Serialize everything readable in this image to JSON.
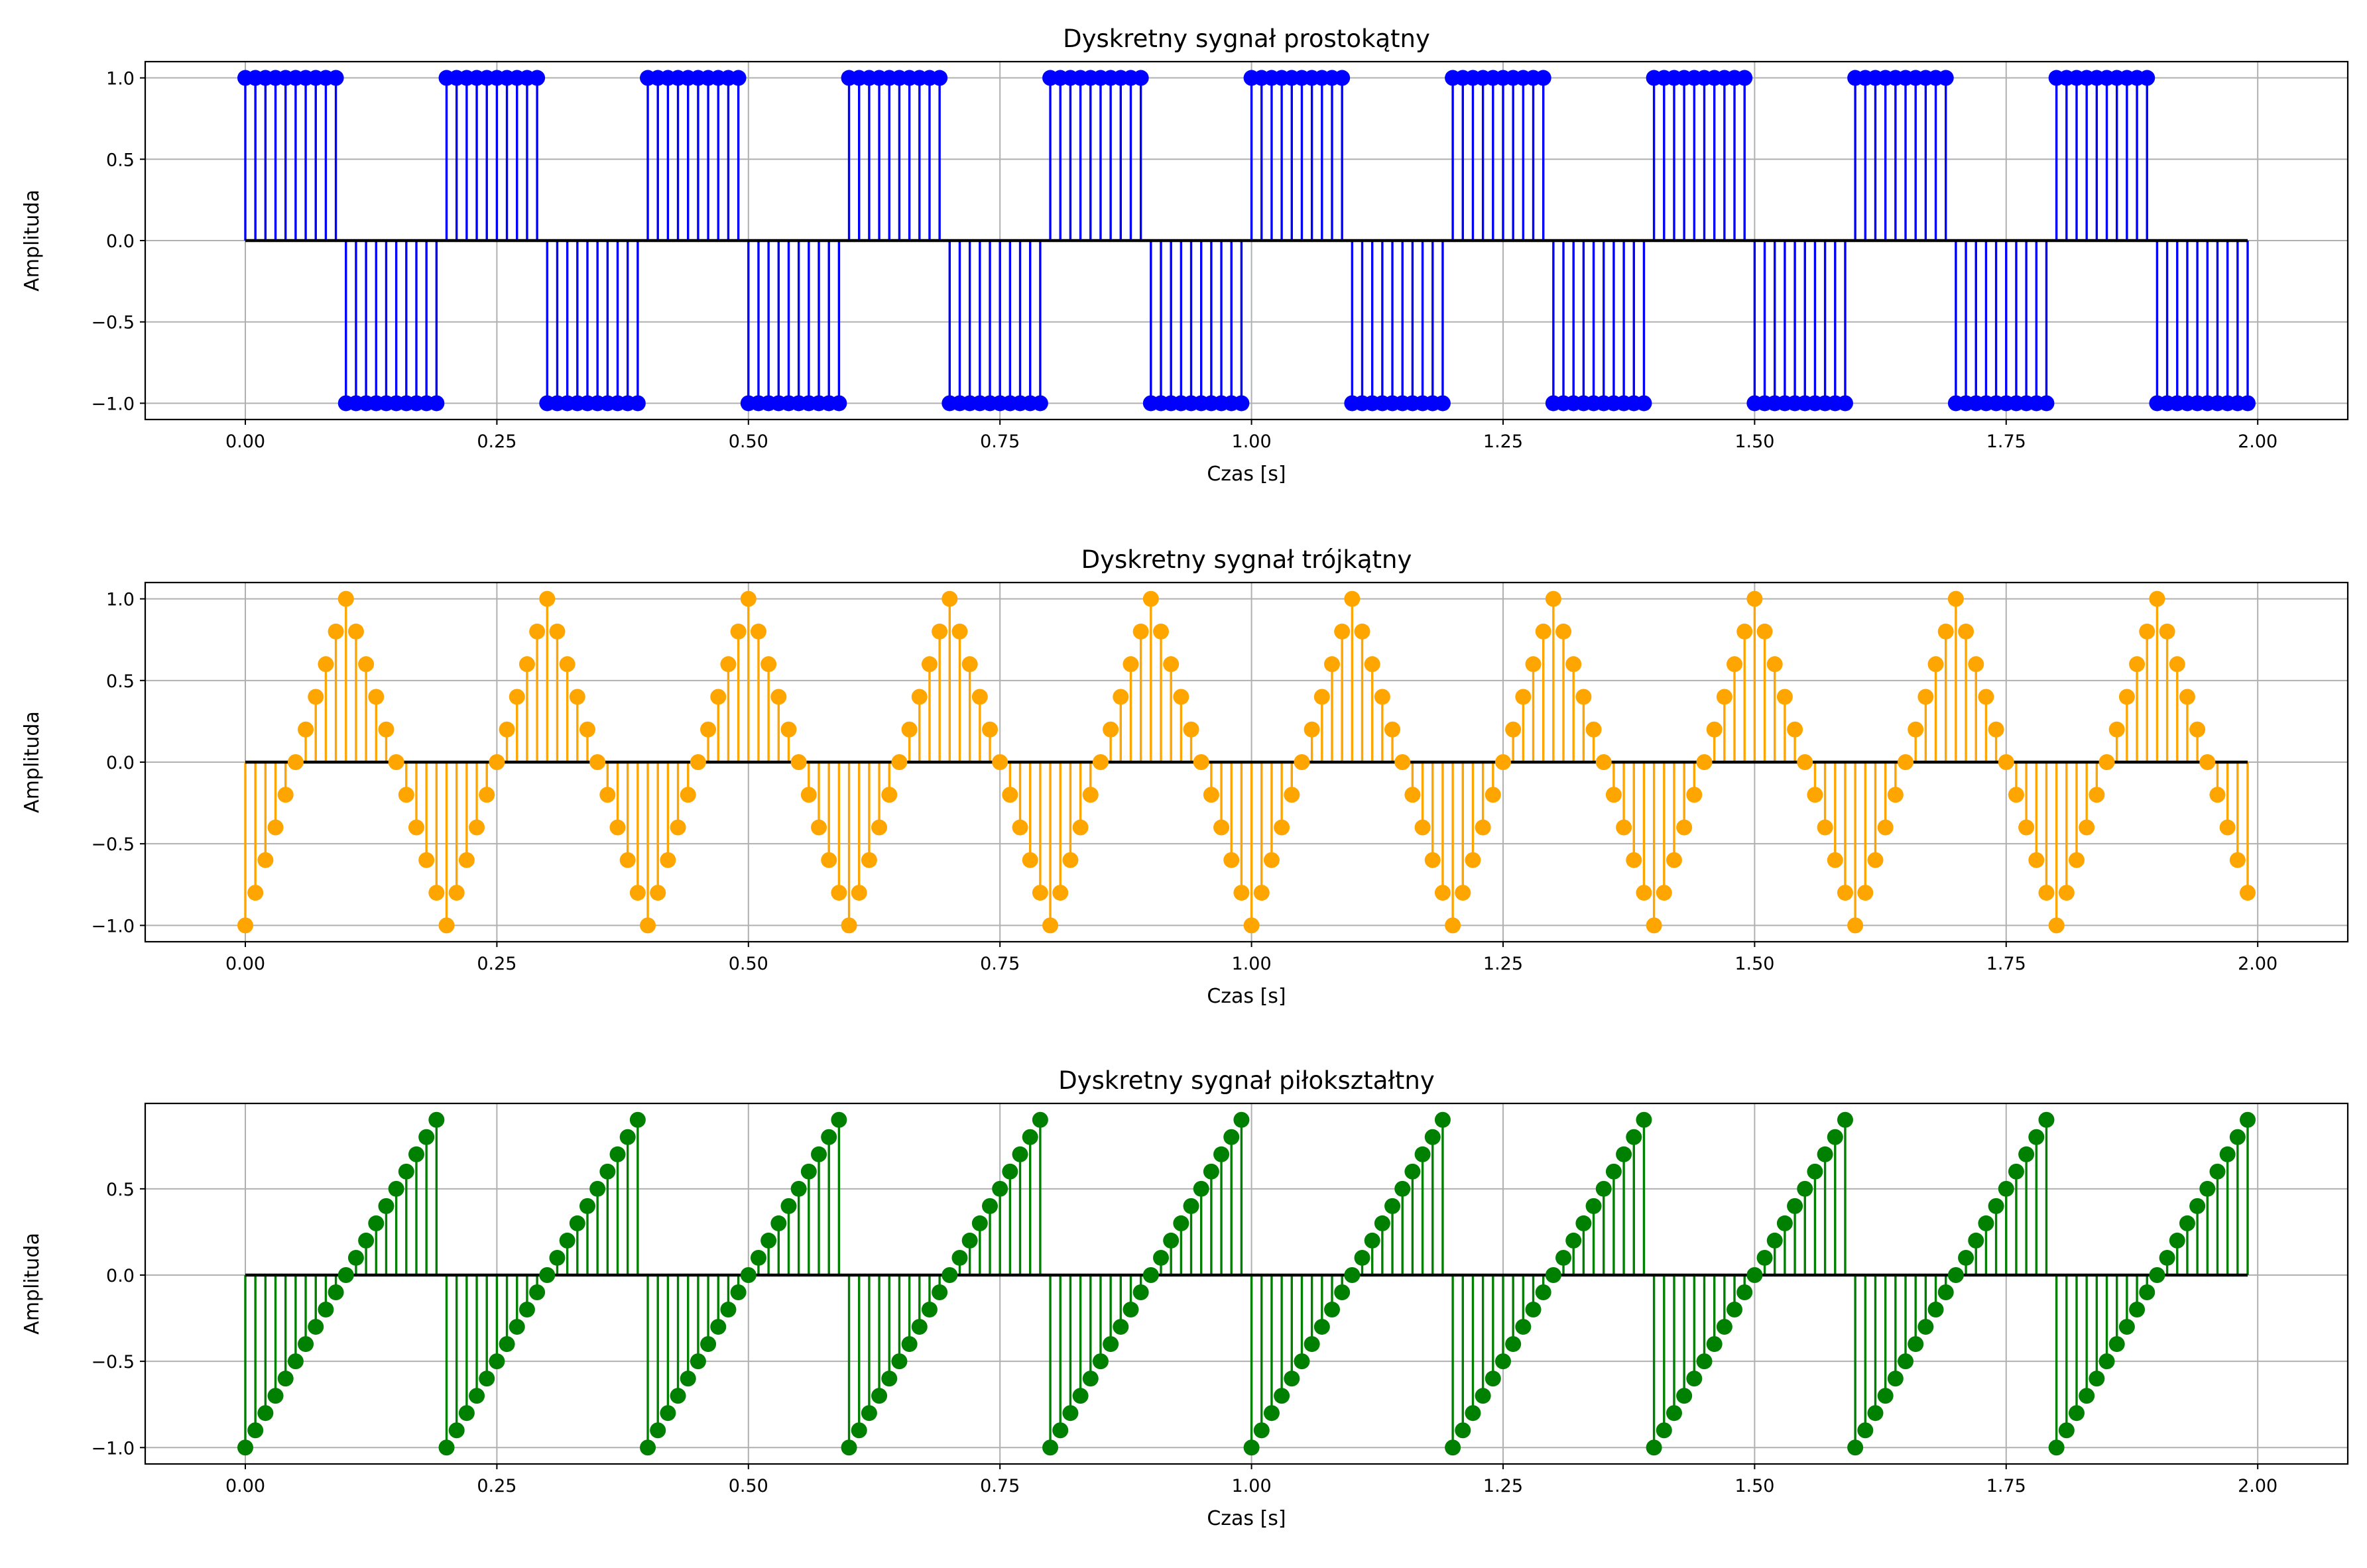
{
  "chart_data": [
    {
      "type": "stem",
      "title": "Dyskretny sygnał prostokątny",
      "xlabel": "Czas [s]",
      "ylabel": "Amplituda",
      "color": "#0000ff",
      "grid": true,
      "xlim": [
        -0.0995,
        2.0895
      ],
      "ylim": [
        -1.1,
        1.1
      ],
      "xticks": [
        0.0,
        0.25,
        0.5,
        0.75,
        1.0,
        1.25,
        1.5,
        1.75,
        2.0
      ],
      "xtick_labels": [
        "0.00",
        "0.25",
        "0.50",
        "0.75",
        "1.00",
        "1.25",
        "1.50",
        "1.75",
        "2.00"
      ],
      "yticks": [
        -1.0,
        -0.5,
        0.0,
        0.5,
        1.0
      ],
      "ytick_labels": [
        "−1.0",
        "−0.5",
        "0.0",
        "0.5",
        "1.0"
      ],
      "x": {
        "start": 0.0,
        "step": 0.01,
        "count": 200
      },
      "values": [
        1,
        1,
        1,
        1,
        1,
        1,
        1,
        1,
        1,
        1,
        -1,
        -1,
        -1,
        -1,
        -1,
        -1,
        -1,
        -1,
        -1,
        -1,
        1,
        1,
        1,
        1,
        1,
        1,
        1,
        1,
        1,
        1,
        -1,
        -1,
        -1,
        -1,
        -1,
        -1,
        -1,
        -1,
        -1,
        -1,
        1,
        1,
        1,
        1,
        1,
        1,
        1,
        1,
        1,
        1,
        -1,
        -1,
        -1,
        -1,
        -1,
        -1,
        -1,
        -1,
        -1,
        -1,
        1,
        1,
        1,
        1,
        1,
        1,
        1,
        1,
        1,
        1,
        -1,
        -1,
        -1,
        -1,
        -1,
        -1,
        -1,
        -1,
        -1,
        -1,
        1,
        1,
        1,
        1,
        1,
        1,
        1,
        1,
        1,
        1,
        -1,
        -1,
        -1,
        -1,
        -1,
        -1,
        -1,
        -1,
        -1,
        -1,
        1,
        1,
        1,
        1,
        1,
        1,
        1,
        1,
        1,
        1,
        -1,
        -1,
        -1,
        -1,
        -1,
        -1,
        -1,
        -1,
        -1,
        -1,
        1,
        1,
        1,
        1,
        1,
        1,
        1,
        1,
        1,
        1,
        -1,
        -1,
        -1,
        -1,
        -1,
        -1,
        -1,
        -1,
        -1,
        -1,
        1,
        1,
        1,
        1,
        1,
        1,
        1,
        1,
        1,
        1,
        -1,
        -1,
        -1,
        -1,
        -1,
        -1,
        -1,
        -1,
        -1,
        -1,
        1,
        1,
        1,
        1,
        1,
        1,
        1,
        1,
        1,
        1,
        -1,
        -1,
        -1,
        -1,
        -1,
        -1,
        -1,
        -1,
        -1,
        -1,
        1,
        1,
        1,
        1,
        1,
        1,
        1,
        1,
        1,
        1,
        -1,
        -1,
        -1,
        -1,
        -1,
        -1,
        -1,
        -1,
        -1,
        -1
      ]
    },
    {
      "type": "stem",
      "title": "Dyskretny sygnał trójkątny",
      "xlabel": "Czas [s]",
      "ylabel": "Amplituda",
      "color": "#ffa500",
      "grid": true,
      "xlim": [
        -0.0995,
        2.0895
      ],
      "ylim": [
        -1.1,
        1.1
      ],
      "xticks": [
        0.0,
        0.25,
        0.5,
        0.75,
        1.0,
        1.25,
        1.5,
        1.75,
        2.0
      ],
      "xtick_labels": [
        "0.00",
        "0.25",
        "0.50",
        "0.75",
        "1.00",
        "1.25",
        "1.50",
        "1.75",
        "2.00"
      ],
      "yticks": [
        -1.0,
        -0.5,
        0.0,
        0.5,
        1.0
      ],
      "ytick_labels": [
        "−1.0",
        "−0.5",
        "0.0",
        "0.5",
        "1.0"
      ],
      "x": {
        "start": 0.0,
        "step": 0.01,
        "count": 200
      },
      "values": [
        -1,
        -0.8,
        -0.6,
        -0.4,
        -0.2,
        0,
        0.2,
        0.4,
        0.6,
        0.8,
        1,
        0.8,
        0.6,
        0.4,
        0.2,
        0,
        -0.2,
        -0.4,
        -0.6,
        -0.8,
        -1,
        -0.8,
        -0.6,
        -0.4,
        -0.2,
        0,
        0.2,
        0.4,
        0.6,
        0.8,
        1,
        0.8,
        0.6,
        0.4,
        0.2,
        0,
        -0.2,
        -0.4,
        -0.6,
        -0.8,
        -1,
        -0.8,
        -0.6,
        -0.4,
        -0.2,
        0,
        0.2,
        0.4,
        0.6,
        0.8,
        1,
        0.8,
        0.6,
        0.4,
        0.2,
        0,
        -0.2,
        -0.4,
        -0.6,
        -0.8,
        -1,
        -0.8,
        -0.6,
        -0.4,
        -0.2,
        0,
        0.2,
        0.4,
        0.6,
        0.8,
        1,
        0.8,
        0.6,
        0.4,
        0.2,
        0,
        -0.2,
        -0.4,
        -0.6,
        -0.8,
        -1,
        -0.8,
        -0.6,
        -0.4,
        -0.2,
        0,
        0.2,
        0.4,
        0.6,
        0.8,
        1,
        0.8,
        0.6,
        0.4,
        0.2,
        0,
        -0.2,
        -0.4,
        -0.6,
        -0.8,
        -1,
        -0.8,
        -0.6,
        -0.4,
        -0.2,
        0,
        0.2,
        0.4,
        0.6,
        0.8,
        1,
        0.8,
        0.6,
        0.4,
        0.2,
        0,
        -0.2,
        -0.4,
        -0.6,
        -0.8,
        -1,
        -0.8,
        -0.6,
        -0.4,
        -0.2,
        0,
        0.2,
        0.4,
        0.6,
        0.8,
        1,
        0.8,
        0.6,
        0.4,
        0.2,
        0,
        -0.2,
        -0.4,
        -0.6,
        -0.8,
        -1,
        -0.8,
        -0.6,
        -0.4,
        -0.2,
        0,
        0.2,
        0.4,
        0.6,
        0.8,
        1,
        0.8,
        0.6,
        0.4,
        0.2,
        0,
        -0.2,
        -0.4,
        -0.6,
        -0.8,
        -1,
        -0.8,
        -0.6,
        -0.4,
        -0.2,
        0,
        0.2,
        0.4,
        0.6,
        0.8,
        1,
        0.8,
        0.6,
        0.4,
        0.2,
        0,
        -0.2,
        -0.4,
        -0.6,
        -0.8,
        -1,
        -0.8,
        -0.6,
        -0.4,
        -0.2,
        0,
        0.2,
        0.4,
        0.6,
        0.8,
        1,
        0.8,
        0.6,
        0.4,
        0.2,
        0,
        -0.2,
        -0.4,
        -0.6,
        -0.8
      ]
    },
    {
      "type": "stem",
      "title": "Dyskretny sygnał piłokształtny",
      "xlabel": "Czas [s]",
      "ylabel": "Amplituda",
      "color": "#008000",
      "grid": true,
      "xlim": [
        -0.0995,
        2.0895
      ],
      "ylim": [
        -1.095,
        0.995
      ],
      "xticks": [
        0.0,
        0.25,
        0.5,
        0.75,
        1.0,
        1.25,
        1.5,
        1.75,
        2.0
      ],
      "xtick_labels": [
        "0.00",
        "0.25",
        "0.50",
        "0.75",
        "1.00",
        "1.25",
        "1.50",
        "1.75",
        "2.00"
      ],
      "yticks": [
        -1.0,
        -0.5,
        0.0,
        0.5
      ],
      "ytick_labels": [
        "−1.0",
        "−0.5",
        "0.0",
        "0.5"
      ],
      "x": {
        "start": 0.0,
        "step": 0.01,
        "count": 200
      },
      "values": [
        -1,
        -0.9,
        -0.8,
        -0.7,
        -0.6,
        -0.5,
        -0.4,
        -0.3,
        -0.2,
        -0.1,
        0,
        0.1,
        0.2,
        0.3,
        0.4,
        0.5,
        0.6,
        0.7,
        0.8,
        0.9,
        -1,
        -0.9,
        -0.8,
        -0.7,
        -0.6,
        -0.5,
        -0.4,
        -0.3,
        -0.2,
        -0.1,
        0,
        0.1,
        0.2,
        0.3,
        0.4,
        0.5,
        0.6,
        0.7,
        0.8,
        0.9,
        -1,
        -0.9,
        -0.8,
        -0.7,
        -0.6,
        -0.5,
        -0.4,
        -0.3,
        -0.2,
        -0.1,
        0,
        0.1,
        0.2,
        0.3,
        0.4,
        0.5,
        0.6,
        0.7,
        0.8,
        0.9,
        -1,
        -0.9,
        -0.8,
        -0.7,
        -0.6,
        -0.5,
        -0.4,
        -0.3,
        -0.2,
        -0.1,
        0,
        0.1,
        0.2,
        0.3,
        0.4,
        0.5,
        0.6,
        0.7,
        0.8,
        0.9,
        -1,
        -0.9,
        -0.8,
        -0.7,
        -0.6,
        -0.5,
        -0.4,
        -0.3,
        -0.2,
        -0.1,
        0,
        0.1,
        0.2,
        0.3,
        0.4,
        0.5,
        0.6,
        0.7,
        0.8,
        0.9,
        -1,
        -0.9,
        -0.8,
        -0.7,
        -0.6,
        -0.5,
        -0.4,
        -0.3,
        -0.2,
        -0.1,
        0,
        0.1,
        0.2,
        0.3,
        0.4,
        0.5,
        0.6,
        0.7,
        0.8,
        0.9,
        -1,
        -0.9,
        -0.8,
        -0.7,
        -0.6,
        -0.5,
        -0.4,
        -0.3,
        -0.2,
        -0.1,
        0,
        0.1,
        0.2,
        0.3,
        0.4,
        0.5,
        0.6,
        0.7,
        0.8,
        0.9,
        -1,
        -0.9,
        -0.8,
        -0.7,
        -0.6,
        -0.5,
        -0.4,
        -0.3,
        -0.2,
        -0.1,
        0,
        0.1,
        0.2,
        0.3,
        0.4,
        0.5,
        0.6,
        0.7,
        0.8,
        0.9,
        -1,
        -0.9,
        -0.8,
        -0.7,
        -0.6,
        -0.5,
        -0.4,
        -0.3,
        -0.2,
        -0.1,
        0,
        0.1,
        0.2,
        0.3,
        0.4,
        0.5,
        0.6,
        0.7,
        0.8,
        0.9,
        -1,
        -0.9,
        -0.8,
        -0.7,
        -0.6,
        -0.5,
        -0.4,
        -0.3,
        -0.2,
        -0.1,
        0,
        0.1,
        0.2,
        0.3,
        0.4,
        0.5,
        0.6,
        0.7,
        0.8,
        0.9
      ]
    }
  ]
}
